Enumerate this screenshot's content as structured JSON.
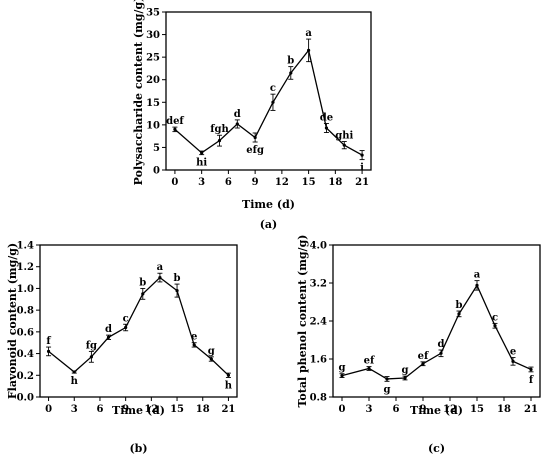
{
  "chart_data": [
    {
      "type": "line",
      "panel_label": "(a)",
      "xlabel": "Time (d)",
      "ylabel": "Polysaccharide content (mg/g)",
      "xlim": [
        -1,
        22
      ],
      "ylim": [
        0,
        35
      ],
      "xticks": [
        0,
        3,
        6,
        9,
        12,
        15,
        18,
        21
      ],
      "yticks": [
        0,
        5,
        10,
        15,
        20,
        25,
        30,
        35
      ],
      "x": [
        0,
        3,
        5,
        7,
        9,
        11,
        13,
        15,
        17,
        19,
        21
      ],
      "y": [
        9,
        3.8,
        6.5,
        10.2,
        7.2,
        15,
        21.5,
        26.5,
        9.3,
        5.5,
        3.3
      ],
      "err": [
        0.5,
        0.4,
        1.2,
        0.9,
        1.0,
        1.8,
        1.4,
        2.5,
        1.0,
        0.8,
        1.0
      ],
      "letters": [
        "def",
        "hi",
        "fgh",
        "d",
        "efg",
        "c",
        "b",
        "a",
        "de",
        "ghi",
        "i"
      ]
    },
    {
      "type": "line",
      "panel_label": "(b)",
      "xlabel": "Time (d)",
      "ylabel": "Flavonoid  content (mg/g)",
      "xlim": [
        -1,
        22
      ],
      "ylim": [
        0,
        1.4
      ],
      "xticks": [
        0,
        3,
        6,
        9,
        12,
        15,
        18,
        21
      ],
      "yticks": [
        0.0,
        0.2,
        0.4,
        0.6,
        0.8,
        1.0,
        1.2,
        1.4
      ],
      "ytick_labels": [
        "0.0",
        "0.2",
        "0.4",
        "0.6",
        "0.8",
        "1.0",
        "1.2",
        "1.4"
      ],
      "x": [
        0,
        3,
        5,
        7,
        9,
        11,
        13,
        15,
        17,
        19,
        21
      ],
      "y": [
        0.42,
        0.23,
        0.37,
        0.55,
        0.64,
        0.95,
        1.1,
        0.98,
        0.48,
        0.35,
        0.2
      ],
      "err": [
        0.04,
        0.01,
        0.05,
        0.02,
        0.03,
        0.05,
        0.04,
        0.06,
        0.02,
        0.02,
        0.02
      ],
      "letters": [
        "f",
        "h",
        "fg",
        "d",
        "c",
        "b",
        "a",
        "b",
        "e",
        "g",
        "h"
      ]
    },
    {
      "type": "line",
      "panel_label": "(c)",
      "xlabel": "Time (d)",
      "ylabel": "Total phenol  content (mg/g)",
      "xlim": [
        -1,
        22
      ],
      "ylim": [
        0.8,
        4.0
      ],
      "xticks": [
        0,
        3,
        6,
        9,
        12,
        15,
        18,
        21
      ],
      "yticks": [
        0.8,
        1.6,
        2.4,
        3.2,
        4.0
      ],
      "ytick_labels": [
        "0.8",
        "1.6",
        "2.4",
        "3.2",
        "4.0"
      ],
      "x": [
        0,
        3,
        5,
        7,
        9,
        11,
        13,
        15,
        17,
        19,
        21
      ],
      "y": [
        1.25,
        1.4,
        1.18,
        1.2,
        1.5,
        1.72,
        2.55,
        3.15,
        2.3,
        1.55,
        1.38
      ],
      "err": [
        0.04,
        0.04,
        0.05,
        0.04,
        0.04,
        0.07,
        0.06,
        0.1,
        0.05,
        0.08,
        0.05
      ],
      "letters": [
        "g",
        "ef",
        "g",
        "g",
        "ef",
        "d",
        "b",
        "a",
        "c",
        "e",
        "f"
      ]
    }
  ]
}
